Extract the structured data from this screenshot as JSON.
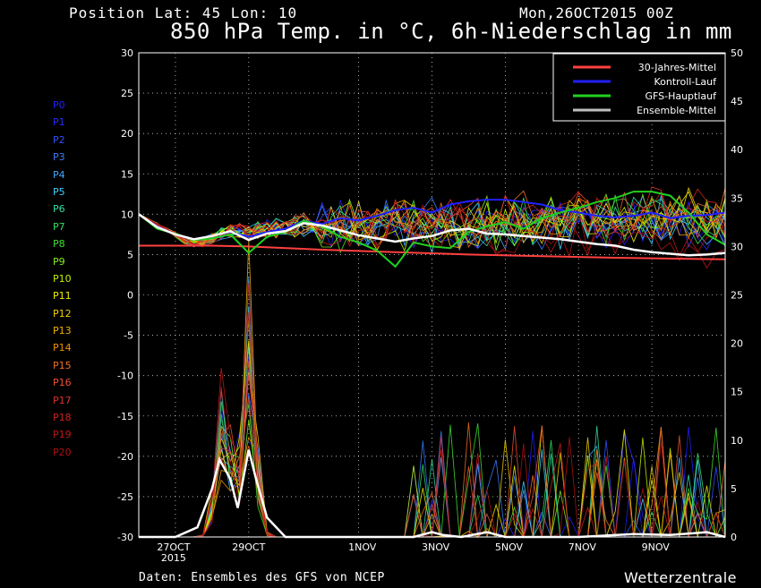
{
  "header": {
    "position": "Position   Lat: 45 Lon: 10",
    "date": "Mon,26OCT2015 00Z",
    "title": "850 hPa Temp. in °C, 6h-Niederschlag in mm"
  },
  "footer": {
    "source": "Daten: Ensembles des GFS von NCEP",
    "brand": "Wetterzentrale"
  },
  "members": [
    {
      "label": "P0",
      "color": "#2020ff"
    },
    {
      "label": "P1",
      "color": "#2a2aff"
    },
    {
      "label": "P2",
      "color": "#3050ff"
    },
    {
      "label": "P3",
      "color": "#3a7cff"
    },
    {
      "label": "P4",
      "color": "#40a8ff"
    },
    {
      "label": "P5",
      "color": "#40d0ff"
    },
    {
      "label": "P6",
      "color": "#30e0a0"
    },
    {
      "label": "P7",
      "color": "#30e060"
    },
    {
      "label": "P8",
      "color": "#40e030"
    },
    {
      "label": "P9",
      "color": "#80f020"
    },
    {
      "label": "P10",
      "color": "#c0f000"
    },
    {
      "label": "P11",
      "color": "#f0f000"
    },
    {
      "label": "P12",
      "color": "#f0d000"
    },
    {
      "label": "P13",
      "color": "#f0b000"
    },
    {
      "label": "P14",
      "color": "#f09000"
    },
    {
      "label": "P15",
      "color": "#f07020"
    },
    {
      "label": "P16",
      "color": "#f05030"
    },
    {
      "label": "P17",
      "color": "#e03030"
    },
    {
      "label": "P18",
      "color": "#d02020"
    },
    {
      "label": "P19",
      "color": "#c01818"
    },
    {
      "label": "P20",
      "color": "#b01010"
    }
  ],
  "chart_data": {
    "type": "line",
    "xlabels": [
      "27OCT",
      "29OCT",
      "1NOV",
      "3NOV",
      "5NOV",
      "7NOV",
      "9NOV"
    ],
    "xlabel_year": "2015",
    "x_range_days": [
      0,
      16
    ],
    "yleft": {
      "ticks": [
        30,
        25,
        20,
        15,
        10,
        5,
        0,
        -5,
        -10,
        -15,
        -20,
        -25,
        -30
      ],
      "lim": [
        -30,
        30
      ]
    },
    "yright": {
      "ticks": [
        50,
        45,
        40,
        35,
        30,
        25,
        20,
        15,
        10,
        5,
        0
      ],
      "lim": [
        0,
        50
      ]
    },
    "grid": true,
    "legend_position": "top-right",
    "legend": [
      {
        "label": "30-Jahres-Mittel",
        "color": "#ff4040"
      },
      {
        "label": "Kontroll-Lauf",
        "color": "#2020ff"
      },
      {
        "label": "GFS-Hauptlauf",
        "color": "#20d020"
      },
      {
        "label": "Ensemble-Mittel",
        "color": "#c0c0c0"
      }
    ],
    "series": [
      {
        "name": "30-Jahres-Mittel",
        "axis": "left",
        "color": "#ff4040",
        "points": [
          [
            0,
            6.1
          ],
          [
            2,
            6.1
          ],
          [
            3,
            6.0
          ],
          [
            5,
            5.6
          ],
          [
            7,
            5.3
          ],
          [
            9,
            5.0
          ],
          [
            11,
            4.8
          ],
          [
            13,
            4.6
          ],
          [
            16,
            4.4
          ]
        ]
      },
      {
        "name": "Kontroll-Lauf",
        "axis": "left",
        "color": "#2020ff",
        "points": [
          [
            0,
            10
          ],
          [
            0.5,
            8.5
          ],
          [
            1,
            7.5
          ],
          [
            1.5,
            6.8
          ],
          [
            2,
            7.3
          ],
          [
            2.5,
            7.8
          ],
          [
            3,
            7.2
          ],
          [
            3.5,
            7.8
          ],
          [
            4,
            8.2
          ],
          [
            4.5,
            9.2
          ],
          [
            5,
            8.8
          ],
          [
            5.5,
            9.5
          ],
          [
            6,
            9.2
          ],
          [
            6.5,
            9.8
          ],
          [
            7,
            10.5
          ],
          [
            7.5,
            10.8
          ],
          [
            8,
            10.2
          ],
          [
            8.5,
            11.2
          ],
          [
            9,
            11.6
          ],
          [
            9.5,
            11.8
          ],
          [
            10,
            11.8
          ],
          [
            10.5,
            11.5
          ],
          [
            11,
            11.2
          ],
          [
            11.5,
            10.5
          ],
          [
            12,
            10.2
          ],
          [
            12.5,
            9.8
          ],
          [
            13,
            9.6
          ],
          [
            13.5,
            9.8
          ],
          [
            14,
            10.2
          ],
          [
            14.5,
            9.5
          ],
          [
            15,
            9.8
          ],
          [
            15.5,
            9.9
          ],
          [
            16,
            10.2
          ]
        ]
      },
      {
        "name": "GFS-Hauptlauf",
        "axis": "left",
        "color": "#20d020",
        "points": [
          [
            0,
            10
          ],
          [
            0.5,
            8.2
          ],
          [
            1,
            7.6
          ],
          [
            1.5,
            6.8
          ],
          [
            2,
            7.0
          ],
          [
            2.5,
            7.5
          ],
          [
            3,
            5.2
          ],
          [
            3.5,
            7.2
          ],
          [
            4,
            7.8
          ],
          [
            4.5,
            9.2
          ],
          [
            5,
            8.5
          ],
          [
            5.5,
            7.2
          ],
          [
            6,
            6.5
          ],
          [
            6.5,
            5.5
          ],
          [
            7,
            3.5
          ],
          [
            7.5,
            6.5
          ],
          [
            8,
            6.0
          ],
          [
            8.5,
            5.8
          ],
          [
            9,
            7.8
          ],
          [
            9.5,
            8.5
          ],
          [
            10,
            9.0
          ],
          [
            10.5,
            8.2
          ],
          [
            11,
            9.5
          ],
          [
            11.5,
            10.2
          ],
          [
            12,
            10.8
          ],
          [
            12.5,
            11.5
          ],
          [
            13,
            12.0
          ],
          [
            13.5,
            12.8
          ],
          [
            14,
            12.8
          ],
          [
            14.5,
            12.3
          ],
          [
            15,
            10.2
          ],
          [
            15.5,
            7.5
          ],
          [
            16,
            6.2
          ]
        ]
      },
      {
        "name": "Ensemble-Mittel",
        "axis": "left",
        "color": "#ffffff",
        "points": [
          [
            0,
            10
          ],
          [
            0.5,
            8.4
          ],
          [
            1,
            7.5
          ],
          [
            1.5,
            6.9
          ],
          [
            2,
            7.3
          ],
          [
            2.5,
            7.9
          ],
          [
            3,
            6.8
          ],
          [
            3.5,
            7.6
          ],
          [
            4,
            7.9
          ],
          [
            4.5,
            8.9
          ],
          [
            5,
            8.6
          ],
          [
            5.5,
            8.0
          ],
          [
            6,
            7.4
          ],
          [
            6.5,
            7.0
          ],
          [
            7,
            6.6
          ],
          [
            7.5,
            7.0
          ],
          [
            8,
            7.3
          ],
          [
            8.5,
            8.0
          ],
          [
            9,
            8.2
          ],
          [
            9.5,
            7.6
          ],
          [
            10,
            7.5
          ],
          [
            10.5,
            7.3
          ],
          [
            11,
            7.1
          ],
          [
            11.5,
            6.9
          ],
          [
            12,
            6.6
          ],
          [
            12.5,
            6.3
          ],
          [
            13,
            6.1
          ],
          [
            13.5,
            5.6
          ],
          [
            14,
            5.3
          ],
          [
            14.5,
            5.1
          ],
          [
            15,
            4.9
          ],
          [
            15.5,
            5.0
          ],
          [
            16,
            5.2
          ]
        ]
      },
      {
        "name": "Ensemble-Mittel Niederschlag",
        "axis": "right",
        "color": "#ffffff",
        "points": [
          [
            0,
            0
          ],
          [
            1,
            0
          ],
          [
            1.6,
            1
          ],
          [
            2.0,
            5
          ],
          [
            2.2,
            8
          ],
          [
            2.5,
            6
          ],
          [
            2.7,
            3
          ],
          [
            3,
            9
          ],
          [
            3.2,
            6
          ],
          [
            3.5,
            2
          ],
          [
            4,
            0
          ],
          [
            7.5,
            0
          ],
          [
            8,
            0.5
          ],
          [
            8.3,
            0.2
          ],
          [
            8.8,
            0
          ],
          [
            9.5,
            0.5
          ],
          [
            10,
            0
          ],
          [
            10.5,
            0
          ],
          [
            11,
            0
          ],
          [
            12,
            0
          ],
          [
            13.5,
            0.3
          ],
          [
            14.5,
            0.2
          ],
          [
            15.5,
            0.5
          ],
          [
            16,
            0
          ]
        ]
      }
    ]
  }
}
